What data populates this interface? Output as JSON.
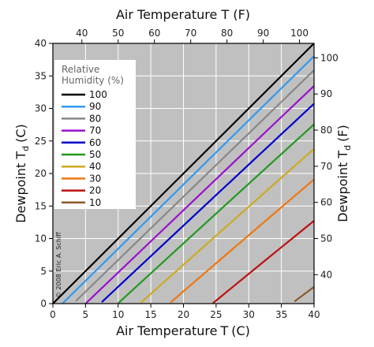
{
  "chart_data": {
    "type": "line",
    "x_bottom": {
      "label_main": "Air Temperature",
      "label_symbol": "T",
      "label_unit": "(C)",
      "lim": [
        0,
        40
      ],
      "ticks": [
        0,
        5,
        10,
        15,
        20,
        25,
        30,
        35,
        40
      ]
    },
    "x_top": {
      "label": "Air Temperature T (F)",
      "lim": [
        32,
        104
      ],
      "ticks": [
        40,
        50,
        60,
        70,
        80,
        90,
        100
      ]
    },
    "y_left": {
      "label_main": "Dewpoint T",
      "label_sub": "d",
      "label_unit": "(C)",
      "lim": [
        0,
        40
      ],
      "ticks": [
        0,
        5,
        10,
        15,
        20,
        25,
        30,
        35,
        40
      ]
    },
    "y_right": {
      "label_main": "Dewpoint T",
      "label_sub": "d",
      "label_unit": "(F)",
      "lim": [
        32,
        104
      ],
      "ticks": [
        40,
        50,
        60,
        70,
        80,
        90,
        100
      ]
    },
    "grid": true,
    "legend": {
      "title_line1": "Relative",
      "title_line2": "Humidity (%)",
      "placement": "top-left"
    },
    "credit": "© 2008 Eric A. Schiff",
    "series": [
      {
        "name": "100",
        "rh": 100,
        "color": "#000000"
      },
      {
        "name": "90",
        "rh": 90,
        "color": "#3399ee"
      },
      {
        "name": "80",
        "rh": 80,
        "color": "#888888"
      },
      {
        "name": "70",
        "rh": 70,
        "color": "#9911cc"
      },
      {
        "name": "60",
        "rh": 60,
        "color": "#0000cc"
      },
      {
        "name": "50",
        "rh": 50,
        "color": "#229922"
      },
      {
        "name": "40",
        "rh": 40,
        "color": "#ccaa22"
      },
      {
        "name": "30",
        "rh": 30,
        "color": "#ee7711"
      },
      {
        "name": "20",
        "rh": 20,
        "color": "#bb1111"
      },
      {
        "name": "10",
        "rh": 10,
        "color": "#8b5a2b"
      }
    ],
    "plot_background": "#c0c0c0"
  }
}
